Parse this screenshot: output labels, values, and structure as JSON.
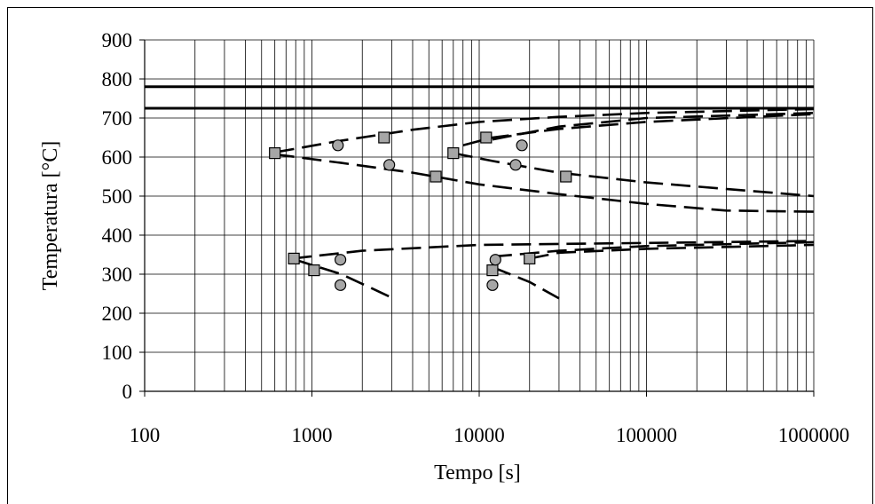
{
  "chart_data": {
    "type": "scatter",
    "title": "",
    "xlabel": "Tempo [s]",
    "ylabel": "Temperatura [°C]",
    "x_scale": "log",
    "xlim": [
      100,
      1000000
    ],
    "ylim": [
      0,
      900
    ],
    "grid": true,
    "legend": "none",
    "x_tick_labels": [
      "100",
      "1000",
      "10000",
      "100000",
      "1000000"
    ],
    "y_tick_labels": [
      "0",
      "100",
      "200",
      "300",
      "400",
      "500",
      "600",
      "700",
      "800",
      "900"
    ],
    "colors": {
      "line": "#000000",
      "square_fill": "#a6a6a6",
      "circle_fill": "#a6a6a6",
      "grid": "#000000"
    },
    "reference_lines": [
      {
        "y": 780
      },
      {
        "y": 725
      }
    ],
    "dashed_curves": [
      {
        "points": [
          [
            600,
            612
          ],
          [
            1400,
            640
          ],
          [
            4000,
            670
          ],
          [
            10000,
            690
          ],
          [
            30000,
            703
          ],
          [
            100000,
            713
          ],
          [
            1000000,
            723
          ]
        ]
      },
      {
        "points": [
          [
            8000,
            630
          ],
          [
            12000,
            650
          ],
          [
            30000,
            672
          ],
          [
            100000,
            690
          ],
          [
            1000000,
            710
          ]
        ]
      },
      {
        "points": [
          [
            12000,
            645
          ],
          [
            30000,
            678
          ],
          [
            100000,
            700
          ],
          [
            1000000,
            713
          ]
        ]
      },
      {
        "points": [
          [
            600,
            607
          ],
          [
            1500,
            585
          ],
          [
            4000,
            560
          ],
          [
            10000,
            530
          ],
          [
            30000,
            505
          ],
          [
            100000,
            480
          ],
          [
            300000,
            463
          ],
          [
            1000000,
            460
          ]
        ]
      },
      {
        "points": [
          [
            7000,
            610
          ],
          [
            12000,
            590
          ],
          [
            30000,
            560
          ],
          [
            100000,
            535
          ],
          [
            1000000,
            500
          ]
        ]
      },
      {
        "points": [
          [
            760,
            340
          ],
          [
            2000,
            360
          ],
          [
            10000,
            375
          ],
          [
            100000,
            380
          ],
          [
            1000000,
            385
          ]
        ]
      },
      {
        "points": [
          [
            20000,
            340
          ],
          [
            30000,
            355
          ],
          [
            100000,
            365
          ],
          [
            1000000,
            375
          ]
        ]
      },
      {
        "points": [
          [
            12000,
            345
          ],
          [
            30000,
            360
          ],
          [
            100000,
            372
          ],
          [
            1000000,
            382
          ]
        ]
      },
      {
        "points": [
          [
            780,
            338
          ],
          [
            1500,
            300
          ],
          [
            3000,
            240
          ]
        ]
      },
      {
        "points": [
          [
            12000,
            318
          ],
          [
            20000,
            280
          ],
          [
            30000,
            238
          ]
        ]
      }
    ],
    "square_markers": [
      [
        600,
        610
      ],
      [
        2700,
        650
      ],
      [
        11000,
        650
      ],
      [
        7000,
        610
      ],
      [
        5500,
        550
      ],
      [
        33000,
        550
      ],
      [
        780,
        340
      ],
      [
        1030,
        310
      ],
      [
        12000,
        310
      ],
      [
        20000,
        340
      ]
    ],
    "circle_markers": [
      [
        1430,
        630
      ],
      [
        18000,
        630
      ],
      [
        2900,
        580
      ],
      [
        16500,
        580
      ],
      [
        1480,
        337
      ],
      [
        12500,
        337
      ],
      [
        1480,
        272
      ],
      [
        12000,
        272
      ]
    ]
  }
}
